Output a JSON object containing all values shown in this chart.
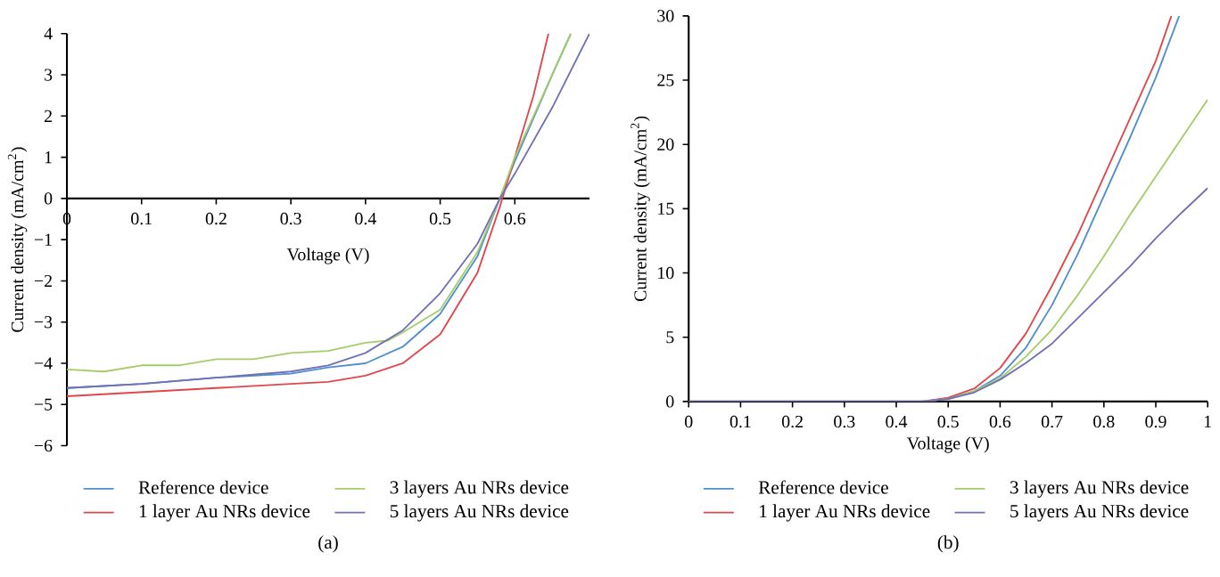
{
  "chart_data": [
    {
      "type": "line",
      "xlabel": "Voltage (V)",
      "ylabel": "Current density (mA/cm$^{2}$)",
      "annotations": [
        "(a)"
      ],
      "legend": "bottom",
      "xlim": [
        0,
        0.7
      ],
      "ylim": [
        -6,
        4
      ],
      "xticks": [
        0,
        0.1,
        0.2,
        0.3,
        0.4,
        0.5,
        0.6
      ],
      "yticks": [
        {
          "value": -6,
          "label": "−6"
        },
        {
          "value": -5,
          "label": "−5"
        },
        {
          "value": -4,
          "label": "−4"
        },
        {
          "value": -3,
          "label": "−3"
        },
        {
          "value": -2,
          "label": "−2"
        },
        {
          "value": -1,
          "label": "−1"
        },
        0,
        1,
        2,
        3,
        4
      ],
      "series": [
        {
          "name": "Reference device",
          "color": "#4f8fd0",
          "x": [
            0,
            0.1,
            0.2,
            0.3,
            0.35,
            0.4,
            0.45,
            0.5,
            0.55,
            0.58,
            0.6,
            0.65,
            0.675
          ],
          "values": [
            -4.6,
            -4.5,
            -4.35,
            -4.25,
            -4.1,
            -4.0,
            -3.6,
            -2.8,
            -1.4,
            0,
            0.9,
            3.0,
            4
          ]
        },
        {
          "name": "1 layer Au NRs device",
          "color": "#e0474c",
          "x": [
            0,
            0.1,
            0.2,
            0.3,
            0.35,
            0.4,
            0.45,
            0.5,
            0.55,
            0.58,
            0.6,
            0.625,
            0.645
          ],
          "values": [
            -4.8,
            -4.7,
            -4.6,
            -4.5,
            -4.45,
            -4.3,
            -4.0,
            -3.3,
            -1.8,
            -0.2,
            1.0,
            2.5,
            4
          ]
        },
        {
          "name": "3 layers Au NRs device",
          "color": "#a6cc6a",
          "x": [
            0,
            0.05,
            0.1,
            0.15,
            0.2,
            0.25,
            0.3,
            0.35,
            0.4,
            0.43,
            0.45,
            0.5,
            0.55,
            0.58,
            0.6,
            0.65,
            0.675
          ],
          "values": [
            -4.15,
            -4.2,
            -4.05,
            -4.05,
            -3.9,
            -3.9,
            -3.75,
            -3.7,
            -3.5,
            -3.45,
            -3.25,
            -2.7,
            -1.3,
            0,
            1.0,
            3.0,
            4
          ]
        },
        {
          "name": "5 layers Au NRs device",
          "color": "#7070b8",
          "x": [
            0,
            0.1,
            0.2,
            0.3,
            0.35,
            0.4,
            0.45,
            0.5,
            0.55,
            0.58,
            0.6,
            0.65,
            0.7
          ],
          "values": [
            -4.6,
            -4.5,
            -4.35,
            -4.2,
            -4.05,
            -3.75,
            -3.2,
            -2.3,
            -1.1,
            0,
            0.6,
            2.2,
            4
          ]
        }
      ]
    },
    {
      "type": "line",
      "xlabel": "Voltage (V)",
      "ylabel": "Current density (mA/cm$^{2}$)",
      "annotations": [
        "(b)"
      ],
      "legend": "bottom",
      "xlim": [
        0,
        1
      ],
      "ylim": [
        0,
        30
      ],
      "xticks": [
        0,
        0.1,
        0.2,
        0.3,
        0.4,
        0.5,
        0.6,
        0.7,
        0.8,
        0.9,
        1
      ],
      "yticks": [
        0,
        5,
        10,
        15,
        20,
        25,
        30
      ],
      "series": [
        {
          "name": "Reference device",
          "color": "#4f8fd0",
          "x": [
            0,
            0.45,
            0.5,
            0.55,
            0.6,
            0.65,
            0.7,
            0.75,
            0.8,
            0.85,
            0.9,
            0.945
          ],
          "values": [
            0,
            0,
            0.2,
            0.8,
            2.0,
            4.2,
            7.5,
            11.5,
            16,
            20.5,
            25.2,
            30
          ]
        },
        {
          "name": "1 layer Au NRs device",
          "color": "#e0474c",
          "x": [
            0,
            0.45,
            0.5,
            0.55,
            0.6,
            0.65,
            0.7,
            0.75,
            0.8,
            0.85,
            0.9,
            0.93
          ],
          "values": [
            0,
            0,
            0.3,
            1.0,
            2.6,
            5.3,
            9.0,
            13,
            17.5,
            22,
            26.5,
            30
          ]
        },
        {
          "name": "3 layers Au NRs device",
          "color": "#a6cc6a",
          "x": [
            0,
            0.45,
            0.5,
            0.55,
            0.6,
            0.65,
            0.7,
            0.75,
            0.8,
            0.85,
            0.9,
            0.95,
            1
          ],
          "values": [
            0,
            0,
            0.2,
            0.8,
            1.8,
            3.5,
            5.6,
            8.3,
            11.3,
            14.5,
            17.5,
            20.5,
            23.5
          ]
        },
        {
          "name": "5 layers Au NRs device",
          "color": "#7070b8",
          "x": [
            0,
            0.45,
            0.5,
            0.55,
            0.6,
            0.65,
            0.7,
            0.75,
            0.8,
            0.85,
            0.9,
            0.95,
            1
          ],
          "values": [
            0,
            0,
            0.2,
            0.7,
            1.7,
            3.0,
            4.5,
            6.5,
            8.5,
            10.5,
            12.7,
            14.7,
            16.6
          ]
        }
      ]
    }
  ]
}
